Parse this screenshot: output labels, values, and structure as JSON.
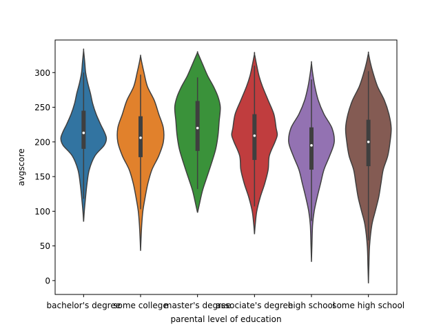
{
  "chart_data": {
    "type": "violin",
    "xlabel": "parental level of education",
    "ylabel": "avgscore",
    "ylim": [
      -20,
      347
    ],
    "yticks": [
      0,
      50,
      100,
      150,
      200,
      250,
      300
    ],
    "grid": false,
    "categories": [
      {
        "name": "bachelor's degree",
        "color": "#3274a1",
        "min": 85,
        "max": 332,
        "whisker_low": 118,
        "whisker_high": 300,
        "q1": 190,
        "median": 213,
        "q3": 245,
        "profile": [
          [
            85,
            0.0
          ],
          [
            100,
            0.03
          ],
          [
            118,
            0.08
          ],
          [
            140,
            0.15
          ],
          [
            160,
            0.25
          ],
          [
            180,
            0.5
          ],
          [
            195,
            0.9
          ],
          [
            205,
            1.0
          ],
          [
            215,
            0.9
          ],
          [
            225,
            0.75
          ],
          [
            240,
            0.55
          ],
          [
            255,
            0.4
          ],
          [
            270,
            0.3
          ],
          [
            285,
            0.18
          ],
          [
            300,
            0.09
          ],
          [
            315,
            0.05
          ],
          [
            332,
            0.0
          ]
        ]
      },
      {
        "name": "some college",
        "color": "#e1812c",
        "min": 43,
        "max": 324,
        "whisker_low": 103,
        "whisker_high": 297,
        "q1": 178,
        "median": 206,
        "q3": 237,
        "profile": [
          [
            43,
            0.0
          ],
          [
            60,
            0.02
          ],
          [
            80,
            0.05
          ],
          [
            100,
            0.1
          ],
          [
            120,
            0.2
          ],
          [
            140,
            0.32
          ],
          [
            160,
            0.5
          ],
          [
            180,
            0.8
          ],
          [
            200,
            1.0
          ],
          [
            220,
            1.0
          ],
          [
            240,
            0.8
          ],
          [
            260,
            0.6
          ],
          [
            280,
            0.3
          ],
          [
            300,
            0.15
          ],
          [
            315,
            0.05
          ],
          [
            324,
            0.0
          ]
        ]
      },
      {
        "name": "master's degree",
        "color": "#3a923a",
        "min": 98,
        "max": 329,
        "whisker_low": 132,
        "whisker_high": 293,
        "q1": 187,
        "median": 220,
        "q3": 259,
        "profile": [
          [
            98,
            0.0
          ],
          [
            110,
            0.08
          ],
          [
            130,
            0.22
          ],
          [
            150,
            0.42
          ],
          [
            170,
            0.62
          ],
          [
            190,
            0.8
          ],
          [
            210,
            0.9
          ],
          [
            230,
            0.95
          ],
          [
            250,
            1.0
          ],
          [
            265,
            0.9
          ],
          [
            280,
            0.7
          ],
          [
            295,
            0.45
          ],
          [
            310,
            0.25
          ],
          [
            320,
            0.12
          ],
          [
            329,
            0.0
          ]
        ]
      },
      {
        "name": "associate's degree",
        "color": "#c03d3e",
        "min": 67,
        "max": 327,
        "whisker_low": 107,
        "whisker_high": 310,
        "q1": 174,
        "median": 209,
        "q3": 240,
        "profile": [
          [
            67,
            0.0
          ],
          [
            80,
            0.03
          ],
          [
            100,
            0.1
          ],
          [
            120,
            0.25
          ],
          [
            140,
            0.45
          ],
          [
            160,
            0.6
          ],
          [
            180,
            0.65
          ],
          [
            200,
            0.9
          ],
          [
            210,
            1.0
          ],
          [
            220,
            0.95
          ],
          [
            240,
            0.85
          ],
          [
            260,
            0.6
          ],
          [
            280,
            0.35
          ],
          [
            295,
            0.2
          ],
          [
            310,
            0.1
          ],
          [
            327,
            0.0
          ]
        ]
      },
      {
        "name": "high school",
        "color": "#9372b2",
        "min": 27,
        "max": 314,
        "whisker_low": 86,
        "whisker_high": 290,
        "q1": 160,
        "median": 195,
        "q3": 221,
        "profile": [
          [
            27,
            0.0
          ],
          [
            50,
            0.02
          ],
          [
            80,
            0.05
          ],
          [
            100,
            0.12
          ],
          [
            120,
            0.25
          ],
          [
            140,
            0.4
          ],
          [
            160,
            0.55
          ],
          [
            180,
            0.8
          ],
          [
            200,
            1.0
          ],
          [
            220,
            0.9
          ],
          [
            240,
            0.55
          ],
          [
            260,
            0.3
          ],
          [
            280,
            0.15
          ],
          [
            300,
            0.05
          ],
          [
            314,
            0.0
          ]
        ]
      },
      {
        "name": "some high school",
        "color": "#845b53",
        "min": -4,
        "max": 328,
        "whisker_low": 58,
        "whisker_high": 302,
        "q1": 165,
        "median": 200,
        "q3": 232,
        "profile": [
          [
            -4,
            0.0
          ],
          [
            20,
            0.02
          ],
          [
            50,
            0.05
          ],
          [
            80,
            0.15
          ],
          [
            100,
            0.3
          ],
          [
            120,
            0.45
          ],
          [
            140,
            0.55
          ],
          [
            160,
            0.65
          ],
          [
            180,
            0.85
          ],
          [
            200,
            0.95
          ],
          [
            220,
            1.0
          ],
          [
            240,
            0.9
          ],
          [
            260,
            0.7
          ],
          [
            280,
            0.4
          ],
          [
            300,
            0.2
          ],
          [
            315,
            0.08
          ],
          [
            328,
            0.0
          ]
        ]
      }
    ]
  }
}
